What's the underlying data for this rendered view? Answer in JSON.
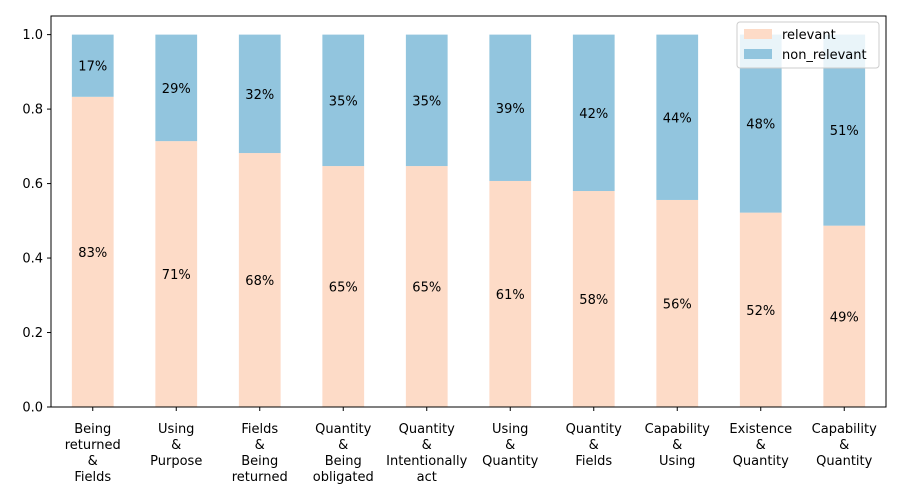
{
  "chart_data": {
    "type": "bar",
    "stacked": true,
    "categories": [
      [
        "Being",
        "returned",
        "&",
        "Fields"
      ],
      [
        "Using",
        "&",
        "Purpose"
      ],
      [
        "Fields",
        "&",
        "Being",
        "returned"
      ],
      [
        "Quantity",
        "&",
        "Being",
        "obligated"
      ],
      [
        "Quantity",
        "&",
        "Intentionally",
        "act"
      ],
      [
        "Using",
        "&",
        "Quantity"
      ],
      [
        "Quantity",
        "&",
        "Fields"
      ],
      [
        "Capability",
        "&",
        "Using"
      ],
      [
        "Existence",
        "&",
        "Quantity"
      ],
      [
        "Capability",
        "&",
        "Quantity"
      ]
    ],
    "series": [
      {
        "name": "relevant",
        "color": "#fddbc7",
        "values": [
          0.833,
          0.714,
          0.682,
          0.647,
          0.647,
          0.607,
          0.58,
          0.556,
          0.522,
          0.487
        ],
        "labels": [
          "83%",
          "71%",
          "68%",
          "65%",
          "65%",
          "61%",
          "58%",
          "56%",
          "52%",
          "49%"
        ]
      },
      {
        "name": "non_relevant",
        "color": "#92c5de",
        "values": [
          0.167,
          0.286,
          0.318,
          0.353,
          0.353,
          0.393,
          0.42,
          0.444,
          0.478,
          0.513
        ],
        "labels": [
          "17%",
          "29%",
          "32%",
          "35%",
          "35%",
          "39%",
          "42%",
          "44%",
          "48%",
          "51%"
        ]
      }
    ],
    "yticks": [
      "0.0",
      "0.2",
      "0.4",
      "0.6",
      "0.8",
      "1.0"
    ],
    "ylim": [
      0,
      1.05
    ],
    "legend_position": "top-right",
    "grid": false
  }
}
